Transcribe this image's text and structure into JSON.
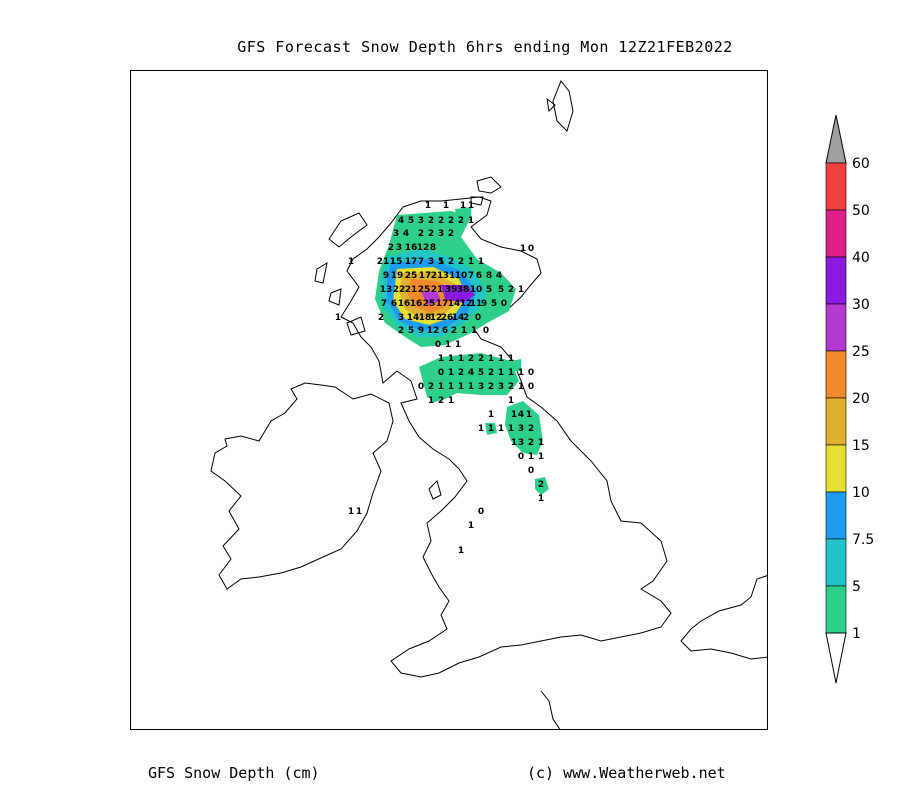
{
  "title": "GFS Forecast Snow Depth 6hrs ending Mon 12Z21FEB2022",
  "footer": {
    "variable": "GFS Snow Depth (cm)",
    "credit": "(c) www.Weatherweb.net"
  },
  "legend": {
    "levels": [
      {
        "label": "1",
        "color": "#2ecf8a"
      },
      {
        "label": "5",
        "color": "#22c4c8"
      },
      {
        "label": "7.5",
        "color": "#1e9cf0"
      },
      {
        "label": "10",
        "color": "#e6e032"
      },
      {
        "label": "15",
        "color": "#e0b030"
      },
      {
        "label": "20",
        "color": "#f08a2a"
      },
      {
        "label": "25",
        "color": "#b23ad0"
      },
      {
        "label": "30",
        "color": "#8a1ae0"
      },
      {
        "label": "40",
        "color": "#e0208a"
      },
      {
        "label": "50",
        "color": "#f04040"
      },
      {
        "label": "60",
        "color": "#a0a0a0"
      }
    ]
  },
  "grid_values": [
    {
      "v": "1",
      "x": 427,
      "y": 207
    },
    {
      "v": "1",
      "x": 445,
      "y": 207
    },
    {
      "v": "1",
      "x": 462,
      "y": 207
    },
    {
      "v": "1",
      "x": 470,
      "y": 207
    },
    {
      "v": "4",
      "x": 400,
      "y": 222
    },
    {
      "v": "5",
      "x": 410,
      "y": 222
    },
    {
      "v": "3",
      "x": 420,
      "y": 222
    },
    {
      "v": "2",
      "x": 430,
      "y": 222
    },
    {
      "v": "2",
      "x": 440,
      "y": 222
    },
    {
      "v": "2",
      "x": 450,
      "y": 222
    },
    {
      "v": "2",
      "x": 460,
      "y": 222
    },
    {
      "v": "1",
      "x": 470,
      "y": 222
    },
    {
      "v": "3",
      "x": 395,
      "y": 235
    },
    {
      "v": "4",
      "x": 405,
      "y": 235
    },
    {
      "v": "2",
      "x": 420,
      "y": 235
    },
    {
      "v": "2",
      "x": 430,
      "y": 235
    },
    {
      "v": "3",
      "x": 440,
      "y": 235
    },
    {
      "v": "2",
      "x": 450,
      "y": 235
    },
    {
      "v": "1",
      "x": 522,
      "y": 250
    },
    {
      "v": "0",
      "x": 530,
      "y": 250
    },
    {
      "v": "1",
      "x": 350,
      "y": 263
    },
    {
      "v": "1",
      "x": 440,
      "y": 263
    },
    {
      "v": "1",
      "x": 470,
      "y": 263
    },
    {
      "v": "1",
      "x": 480,
      "y": 263
    },
    {
      "v": "6",
      "x": 478,
      "y": 277
    },
    {
      "v": "8",
      "x": 488,
      "y": 277
    },
    {
      "v": "4",
      "x": 498,
      "y": 277
    },
    {
      "v": "5",
      "x": 500,
      "y": 291
    },
    {
      "v": "2",
      "x": 510,
      "y": 291
    },
    {
      "v": "1",
      "x": 520,
      "y": 291
    },
    {
      "v": "9",
      "x": 483,
      "y": 305
    },
    {
      "v": "5",
      "x": 493,
      "y": 305
    },
    {
      "v": "0",
      "x": 503,
      "y": 305
    },
    {
      "v": "2",
      "x": 465,
      "y": 319
    },
    {
      "v": "0",
      "x": 477,
      "y": 319
    },
    {
      "v": "1",
      "x": 473,
      "y": 332
    },
    {
      "v": "0",
      "x": 485,
      "y": 332
    },
    {
      "v": "0",
      "x": 437,
      "y": 346
    },
    {
      "v": "1",
      "x": 447,
      "y": 346
    },
    {
      "v": "1",
      "x": 457,
      "y": 346
    },
    {
      "v": "1",
      "x": 440,
      "y": 360
    },
    {
      "v": "1",
      "x": 450,
      "y": 360
    },
    {
      "v": "1",
      "x": 460,
      "y": 360
    },
    {
      "v": "2",
      "x": 470,
      "y": 360
    },
    {
      "v": "2",
      "x": 480,
      "y": 360
    },
    {
      "v": "1",
      "x": 490,
      "y": 360
    },
    {
      "v": "1",
      "x": 500,
      "y": 360
    },
    {
      "v": "1",
      "x": 510,
      "y": 360
    },
    {
      "v": "0",
      "x": 440,
      "y": 374
    },
    {
      "v": "1",
      "x": 450,
      "y": 374
    },
    {
      "v": "2",
      "x": 460,
      "y": 374
    },
    {
      "v": "4",
      "x": 470,
      "y": 374
    },
    {
      "v": "5",
      "x": 480,
      "y": 374
    },
    {
      "v": "2",
      "x": 490,
      "y": 374
    },
    {
      "v": "1",
      "x": 500,
      "y": 374
    },
    {
      "v": "1",
      "x": 510,
      "y": 374
    },
    {
      "v": "1",
      "x": 520,
      "y": 374
    },
    {
      "v": "0",
      "x": 530,
      "y": 374
    },
    {
      "v": "0",
      "x": 420,
      "y": 388
    },
    {
      "v": "2",
      "x": 430,
      "y": 388
    },
    {
      "v": "1",
      "x": 440,
      "y": 388
    },
    {
      "v": "1",
      "x": 450,
      "y": 388
    },
    {
      "v": "1",
      "x": 460,
      "y": 388
    },
    {
      "v": "1",
      "x": 470,
      "y": 388
    },
    {
      "v": "3",
      "x": 480,
      "y": 388
    },
    {
      "v": "2",
      "x": 490,
      "y": 388
    },
    {
      "v": "3",
      "x": 500,
      "y": 388
    },
    {
      "v": "2",
      "x": 510,
      "y": 388
    },
    {
      "v": "1",
      "x": 520,
      "y": 388
    },
    {
      "v": "0",
      "x": 530,
      "y": 388
    },
    {
      "v": "1",
      "x": 430,
      "y": 402
    },
    {
      "v": "2",
      "x": 440,
      "y": 402
    },
    {
      "v": "1",
      "x": 450,
      "y": 402
    },
    {
      "v": "1",
      "x": 510,
      "y": 402
    },
    {
      "v": "1",
      "x": 490,
      "y": 416
    },
    {
      "v": "1",
      "x": 513,
      "y": 416
    },
    {
      "v": "4",
      "x": 520,
      "y": 416
    },
    {
      "v": "1",
      "x": 528,
      "y": 416
    },
    {
      "v": "1",
      "x": 480,
      "y": 430
    },
    {
      "v": "1",
      "x": 490,
      "y": 430
    },
    {
      "v": "1",
      "x": 500,
      "y": 430
    },
    {
      "v": "1",
      "x": 510,
      "y": 430
    },
    {
      "v": "3",
      "x": 520,
      "y": 430
    },
    {
      "v": "2",
      "x": 530,
      "y": 430
    },
    {
      "v": "1",
      "x": 513,
      "y": 444
    },
    {
      "v": "3",
      "x": 520,
      "y": 444
    },
    {
      "v": "2",
      "x": 530,
      "y": 444
    },
    {
      "v": "1",
      "x": 540,
      "y": 444
    },
    {
      "v": "0",
      "x": 520,
      "y": 458
    },
    {
      "v": "1",
      "x": 530,
      "y": 458
    },
    {
      "v": "1",
      "x": 540,
      "y": 458
    },
    {
      "v": "0",
      "x": 530,
      "y": 472
    },
    {
      "v": "2",
      "x": 540,
      "y": 486
    },
    {
      "v": "1",
      "x": 540,
      "y": 500
    },
    {
      "v": "1",
      "x": 350,
      "y": 513
    },
    {
      "v": "1",
      "x": 358,
      "y": 513
    },
    {
      "v": "0",
      "x": 480,
      "y": 513
    },
    {
      "v": "1",
      "x": 470,
      "y": 527
    },
    {
      "v": "1",
      "x": 460,
      "y": 552
    }
  ],
  "hotspot_values": [
    {
      "v": "21",
      "x": 382,
      "y": 263
    },
    {
      "v": "15",
      "x": 395,
      "y": 263
    },
    {
      "v": "17",
      "x": 410,
      "y": 263
    },
    {
      "v": "7",
      "x": 420,
      "y": 263
    },
    {
      "v": "3",
      "x": 430,
      "y": 263
    },
    {
      "v": "5",
      "x": 440,
      "y": 263
    },
    {
      "v": "2",
      "x": 450,
      "y": 263
    },
    {
      "v": "2",
      "x": 460,
      "y": 263
    },
    {
      "v": "9",
      "x": 385,
      "y": 277
    },
    {
      "v": "19",
      "x": 396,
      "y": 277
    },
    {
      "v": "25",
      "x": 410,
      "y": 277
    },
    {
      "v": "17",
      "x": 424,
      "y": 277
    },
    {
      "v": "21",
      "x": 436,
      "y": 277
    },
    {
      "v": "31",
      "x": 448,
      "y": 277
    },
    {
      "v": "10",
      "x": 460,
      "y": 277
    },
    {
      "v": "7",
      "x": 470,
      "y": 277
    },
    {
      "v": "13",
      "x": 385,
      "y": 291
    },
    {
      "v": "22",
      "x": 398,
      "y": 291
    },
    {
      "v": "21",
      "x": 410,
      "y": 291
    },
    {
      "v": "25",
      "x": 423,
      "y": 291
    },
    {
      "v": "21",
      "x": 436,
      "y": 291
    },
    {
      "v": "39",
      "x": 450,
      "y": 291
    },
    {
      "v": "38",
      "x": 462,
      "y": 291
    },
    {
      "v": "10",
      "x": 475,
      "y": 291
    },
    {
      "v": "5",
      "x": 488,
      "y": 291
    },
    {
      "v": "7",
      "x": 383,
      "y": 305
    },
    {
      "v": "6",
      "x": 393,
      "y": 305
    },
    {
      "v": "16",
      "x": 403,
      "y": 305
    },
    {
      "v": "16",
      "x": 415,
      "y": 305
    },
    {
      "v": "25",
      "x": 428,
      "y": 305
    },
    {
      "v": "17",
      "x": 441,
      "y": 305
    },
    {
      "v": "14",
      "x": 453,
      "y": 305
    },
    {
      "v": "12",
      "x": 465,
      "y": 305
    },
    {
      "v": "11",
      "x": 475,
      "y": 305
    },
    {
      "v": "3",
      "x": 400,
      "y": 319
    },
    {
      "v": "14",
      "x": 412,
      "y": 319
    },
    {
      "v": "18",
      "x": 424,
      "y": 319
    },
    {
      "v": "12",
      "x": 435,
      "y": 319
    },
    {
      "v": "26",
      "x": 446,
      "y": 319
    },
    {
      "v": "14",
      "x": 457,
      "y": 319
    },
    {
      "v": "2",
      "x": 400,
      "y": 332
    },
    {
      "v": "5",
      "x": 410,
      "y": 332
    },
    {
      "v": "9",
      "x": 420,
      "y": 332
    },
    {
      "v": "12",
      "x": 432,
      "y": 332
    },
    {
      "v": "6",
      "x": 444,
      "y": 332
    },
    {
      "v": "2",
      "x": 453,
      "y": 332
    },
    {
      "v": "1",
      "x": 463,
      "y": 332
    },
    {
      "v": "2",
      "x": 390,
      "y": 249
    },
    {
      "v": "3",
      "x": 398,
      "y": 249
    },
    {
      "v": "16",
      "x": 410,
      "y": 249
    },
    {
      "v": "12",
      "x": 422,
      "y": 249
    },
    {
      "v": "8",
      "x": 432,
      "y": 249
    },
    {
      "v": "1",
      "x": 337,
      "y": 319
    },
    {
      "v": "2",
      "x": 380,
      "y": 319
    }
  ]
}
